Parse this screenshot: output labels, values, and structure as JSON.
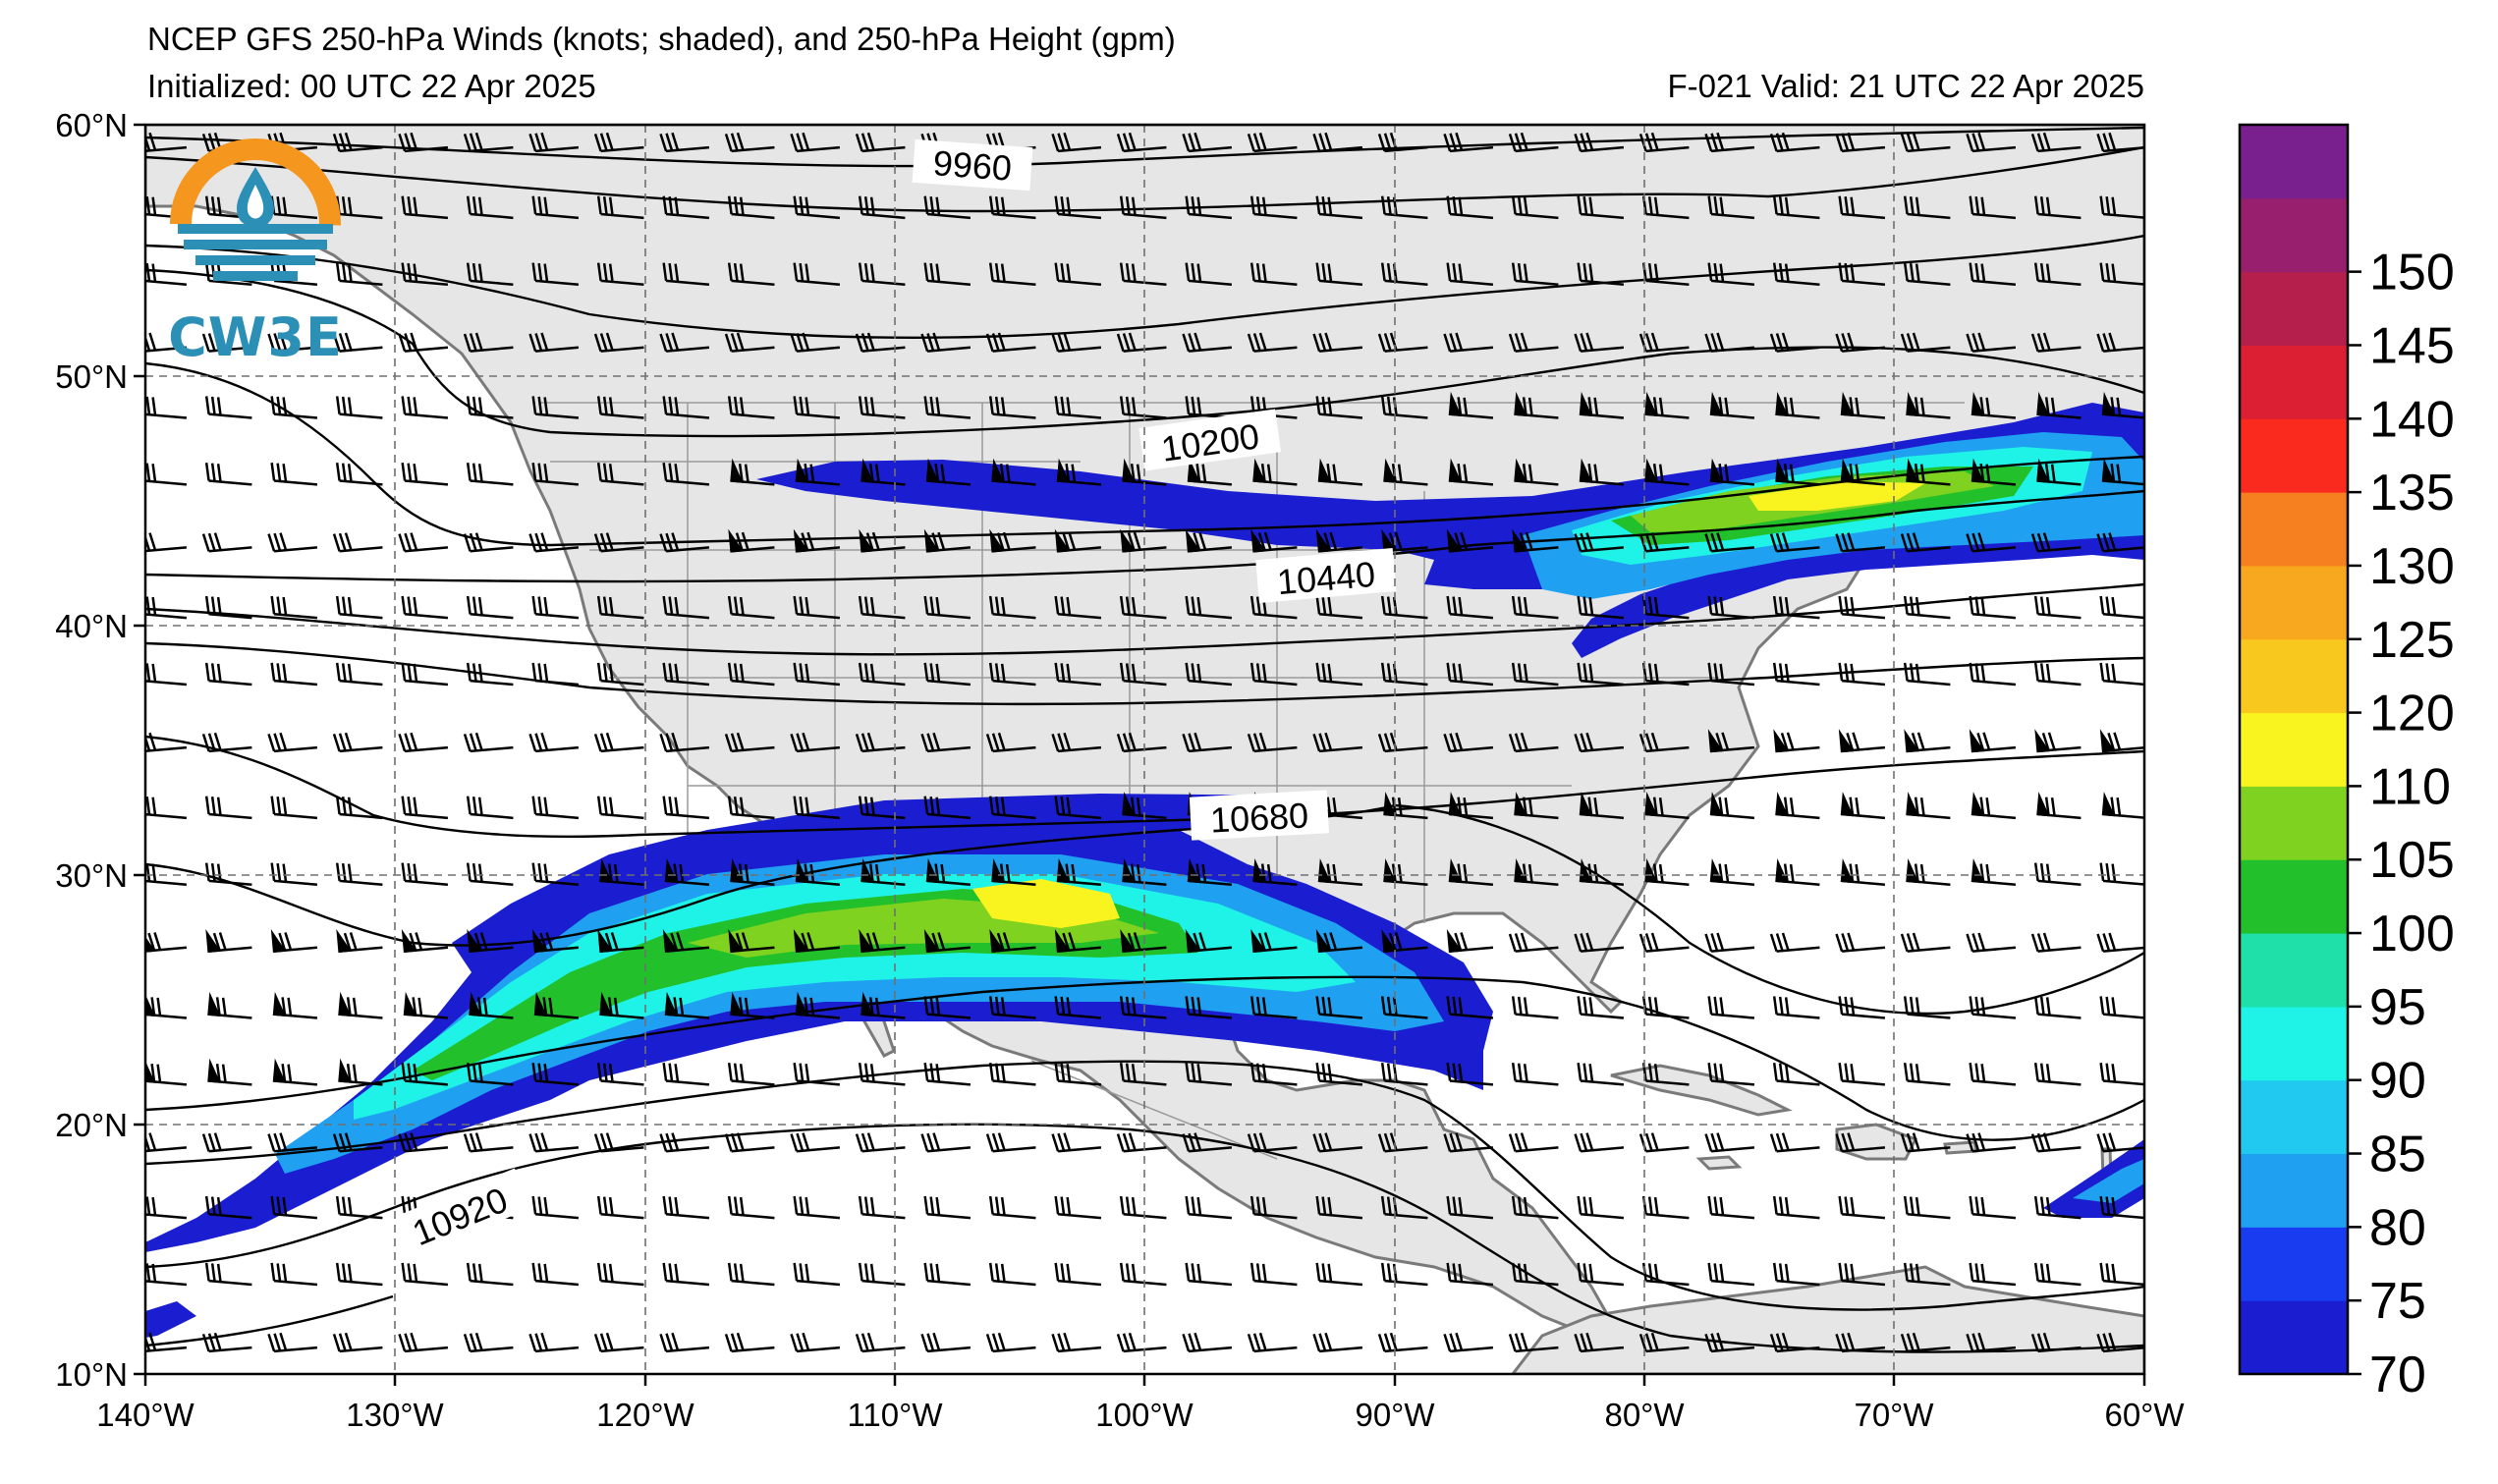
{
  "title": {
    "line1": "NCEP GFS 250-hPa Winds (knots; shaded), and 250-hPa Height (gpm)",
    "line2": "Initialized: 00 UTC 22 Apr 2025",
    "valid": "F-021  Valid: 21 UTC 22 Apr 2025"
  },
  "logo": {
    "text": "CW3E",
    "icon": "cw3e-logo-icon"
  },
  "map": {
    "lon_range": [
      -140,
      -60
    ],
    "lat_range": [
      10,
      60
    ],
    "lat_ticks": [
      "60°N",
      "50°N",
      "40°N",
      "30°N",
      "20°N",
      "10°N"
    ],
    "lon_ticks": [
      "140°W",
      "130°W",
      "120°W",
      "110°W",
      "100°W",
      "90°W",
      "80°W",
      "70°W",
      "60°W"
    ],
    "grid": "dashed",
    "land_color": "#e6e6e6",
    "ocean_color": "#ffffff"
  },
  "contours": {
    "labels": [
      "9960",
      "10200",
      "10440",
      "10680",
      "10920"
    ]
  },
  "colorbar": {
    "labels": [
      "70",
      "75",
      "80",
      "85",
      "90",
      "95",
      "100",
      "105",
      "110",
      "120",
      "125",
      "130",
      "135",
      "140",
      "145",
      "150"
    ],
    "colors": [
      "#1b1ed0",
      "#1a3cf0",
      "#1fa0f0",
      "#21c9f0",
      "#1ff2e6",
      "#1fe0a8",
      "#22c02a",
      "#7fd21f",
      "#f9f41f",
      "#f9c81f",
      "#f8a81f",
      "#f67f1f",
      "#fa2a1f",
      "#dc1f33",
      "#b51f4c",
      "#981f6e",
      "#7a1f8e"
    ]
  },
  "jets": {
    "fill_colors": [
      "#1b1ed0",
      "#1fa0f0",
      "#1ff2e6",
      "#22c02a",
      "#7fd21f",
      "#f9f41f"
    ]
  }
}
